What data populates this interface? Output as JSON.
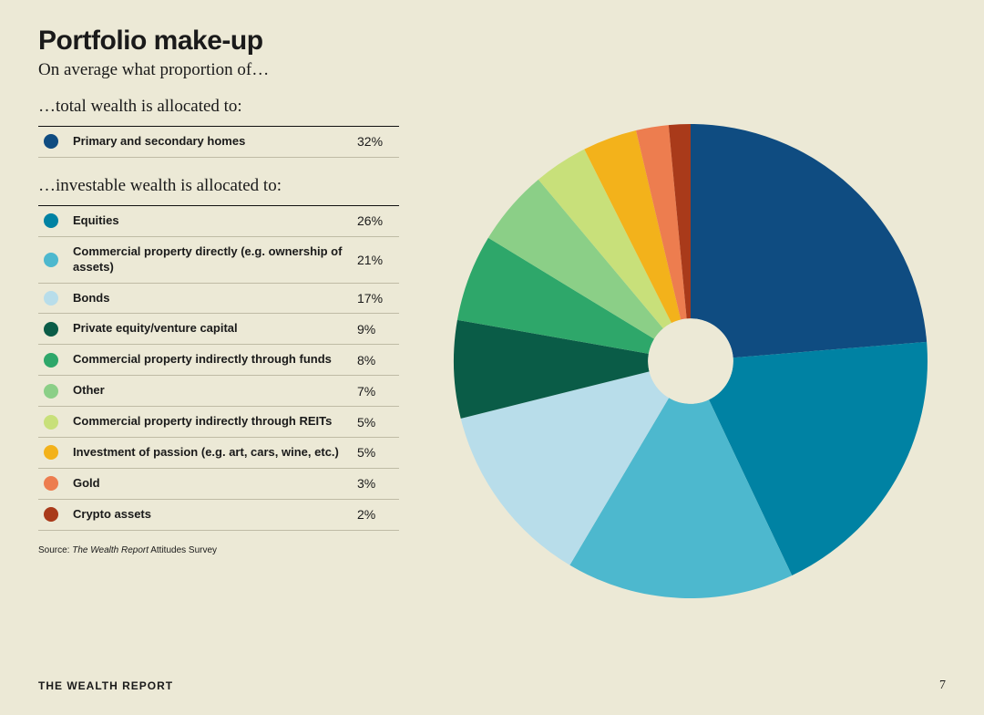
{
  "title": "Portfolio make-up",
  "subtitle": "On average what proportion of…",
  "section1": {
    "heading": "…total wealth is allocated to:",
    "items": [
      {
        "label": "Primary and secondary homes",
        "value": "32%",
        "color": "#0f4c81"
      }
    ]
  },
  "section2": {
    "heading": "…investable wealth is allocated to:",
    "items": [
      {
        "label": "Equities",
        "value": "26%",
        "color": "#0082a3"
      },
      {
        "label": "Commercial property directly (e.g. ownership of assets)",
        "value": "21%",
        "color": "#4db8ce"
      },
      {
        "label": "Bonds",
        "value": "17%",
        "color": "#b8ddea"
      },
      {
        "label": "Private equity/venture capital",
        "value": "9%",
        "color": "#0a5c47"
      },
      {
        "label": "Commercial property indirectly through funds",
        "value": "8%",
        "color": "#2ea76a"
      },
      {
        "label": "Other",
        "value": "7%",
        "color": "#8bcf87"
      },
      {
        "label": "Commercial property indirectly through REITs",
        "value": "5%",
        "color": "#c8e07a"
      },
      {
        "label": "Investment of passion (e.g. art, cars, wine, etc.)",
        "value": "5%",
        "color": "#f3b21b"
      },
      {
        "label": "Gold",
        "value": "3%",
        "color": "#ed7d4f"
      },
      {
        "label": "Crypto assets",
        "value": "2%",
        "color": "#a93a1a"
      }
    ]
  },
  "chart": {
    "type": "donut",
    "start_angle_deg": 0,
    "inner_radius_ratio": 0.18,
    "outer_radius": 260,
    "background_color": "#ece9d6",
    "slices": [
      {
        "label": "Primary and secondary homes",
        "value": 32,
        "color": "#0f4c81"
      },
      {
        "label": "Equities",
        "value": 26,
        "color": "#0082a3"
      },
      {
        "label": "Commercial property directly",
        "value": 21,
        "color": "#4db8ce"
      },
      {
        "label": "Bonds",
        "value": 17,
        "color": "#b8ddea"
      },
      {
        "label": "Private equity/venture capital",
        "value": 9,
        "color": "#0a5c47"
      },
      {
        "label": "Commercial property indirectly through funds",
        "value": 8,
        "color": "#2ea76a"
      },
      {
        "label": "Other",
        "value": 7,
        "color": "#8bcf87"
      },
      {
        "label": "Commercial property indirectly through REITs",
        "value": 5,
        "color": "#c8e07a"
      },
      {
        "label": "Investment of passion",
        "value": 5,
        "color": "#f3b21b"
      },
      {
        "label": "Gold",
        "value": 3,
        "color": "#ed7d4f"
      },
      {
        "label": "Crypto assets",
        "value": 2,
        "color": "#a93a1a"
      }
    ]
  },
  "source": {
    "prefix": "Source: ",
    "italic": "The Wealth Report",
    "suffix": " Attitudes Survey"
  },
  "footer": {
    "title": "THE WEALTH REPORT",
    "page": "7"
  }
}
